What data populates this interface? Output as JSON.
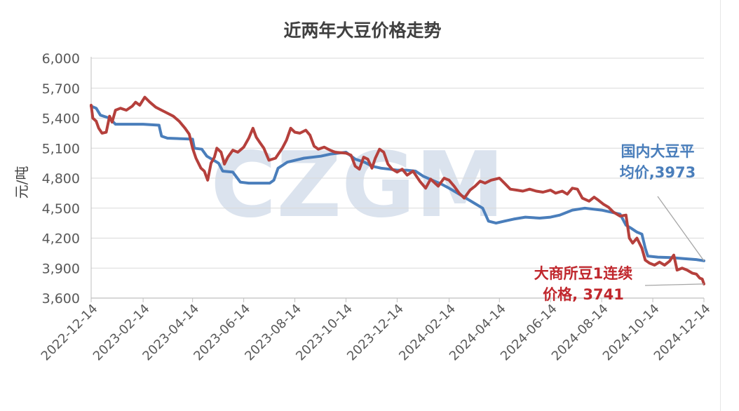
{
  "chart_data": {
    "type": "line",
    "title": "近两年大豆价格走势",
    "ylabel": "元/吨",
    "xlabel": "",
    "ylim": [
      3600,
      6000
    ],
    "xlim": [
      "2022-12-14",
      "2024-12-14"
    ],
    "grid": true,
    "y_ticks": [
      "6,000",
      "5,700",
      "5,400",
      "5,100",
      "4,800",
      "4,500",
      "4,200",
      "3,900",
      "3,600"
    ],
    "x_ticks": [
      "2022-12-14",
      "2023-02-14",
      "2023-04-14",
      "2023-06-14",
      "2023-08-14",
      "2023-10-14",
      "2023-12-14",
      "2024-02-14",
      "2024-04-14",
      "2024-06-14",
      "2024-08-14",
      "2024-10-14",
      "2024-12-14"
    ],
    "watermark": "CZGM",
    "colors": {
      "domestic": "#4a7ebb",
      "dalian": "#b5403c",
      "watermark": "#dbe3ee",
      "grid": "#d9d9d9"
    },
    "series": [
      {
        "name": "国内大豆平均价",
        "color": "#4a7ebb",
        "points": [
          [
            "2022-12-14",
            5520
          ],
          [
            "2022-12-20",
            5500
          ],
          [
            "2022-12-25",
            5430
          ],
          [
            "2023-01-05",
            5400
          ],
          [
            "2023-01-12",
            5340
          ],
          [
            "2023-02-14",
            5340
          ],
          [
            "2023-03-05",
            5330
          ],
          [
            "2023-03-08",
            5220
          ],
          [
            "2023-03-15",
            5200
          ],
          [
            "2023-04-14",
            5190
          ],
          [
            "2023-04-16",
            5100
          ],
          [
            "2023-04-25",
            5090
          ],
          [
            "2023-05-01",
            5020
          ],
          [
            "2023-05-15",
            4950
          ],
          [
            "2023-05-20",
            4870
          ],
          [
            "2023-06-01",
            4860
          ],
          [
            "2023-06-10",
            4760
          ],
          [
            "2023-06-20",
            4750
          ],
          [
            "2023-07-15",
            4750
          ],
          [
            "2023-07-20",
            4780
          ],
          [
            "2023-07-25",
            4900
          ],
          [
            "2023-08-05",
            4960
          ],
          [
            "2023-08-25",
            5000
          ],
          [
            "2023-09-14",
            5020
          ],
          [
            "2023-09-25",
            5040
          ],
          [
            "2023-10-14",
            5060
          ],
          [
            "2023-10-25",
            4990
          ],
          [
            "2023-11-05",
            4960
          ],
          [
            "2023-11-14",
            4920
          ],
          [
            "2023-11-25",
            4900
          ],
          [
            "2023-12-05",
            4890
          ],
          [
            "2023-12-14",
            4880
          ],
          [
            "2023-12-25",
            4880
          ],
          [
            "2024-01-05",
            4870
          ],
          [
            "2024-01-14",
            4820
          ],
          [
            "2024-01-25",
            4780
          ],
          [
            "2024-02-05",
            4740
          ],
          [
            "2024-02-14",
            4700
          ],
          [
            "2024-03-01",
            4620
          ],
          [
            "2024-03-15",
            4550
          ],
          [
            "2024-03-25",
            4500
          ],
          [
            "2024-04-01",
            4370
          ],
          [
            "2024-04-10",
            4350
          ],
          [
            "2024-04-20",
            4370
          ],
          [
            "2024-05-01",
            4390
          ],
          [
            "2024-05-15",
            4410
          ],
          [
            "2024-06-01",
            4400
          ],
          [
            "2024-06-14",
            4410
          ],
          [
            "2024-06-25",
            4430
          ],
          [
            "2024-07-10",
            4480
          ],
          [
            "2024-07-25",
            4500
          ],
          [
            "2024-08-14",
            4480
          ],
          [
            "2024-08-25",
            4460
          ],
          [
            "2024-09-05",
            4440
          ],
          [
            "2024-09-12",
            4330
          ],
          [
            "2024-09-18",
            4300
          ],
          [
            "2024-09-25",
            4260
          ],
          [
            "2024-10-01",
            4240
          ],
          [
            "2024-10-05",
            4100
          ],
          [
            "2024-10-08",
            4020
          ],
          [
            "2024-10-20",
            4010
          ],
          [
            "2024-11-05",
            4005
          ],
          [
            "2024-11-20",
            3995
          ],
          [
            "2024-12-05",
            3985
          ],
          [
            "2024-12-14",
            3973
          ]
        ]
      },
      {
        "name": "大商所豆1连续价格",
        "color": "#b5403c",
        "points": [
          [
            "2022-12-14",
            5530
          ],
          [
            "2022-12-16",
            5400
          ],
          [
            "2022-12-20",
            5370
          ],
          [
            "2022-12-23",
            5300
          ],
          [
            "2022-12-27",
            5250
          ],
          [
            "2023-01-01",
            5260
          ],
          [
            "2023-01-05",
            5420
          ],
          [
            "2023-01-08",
            5360
          ],
          [
            "2023-01-12",
            5480
          ],
          [
            "2023-01-18",
            5500
          ],
          [
            "2023-01-25",
            5480
          ],
          [
            "2023-02-01",
            5520
          ],
          [
            "2023-02-05",
            5560
          ],
          [
            "2023-02-10",
            5530
          ],
          [
            "2023-02-16",
            5610
          ],
          [
            "2023-02-22",
            5560
          ],
          [
            "2023-03-01",
            5510
          ],
          [
            "2023-03-08",
            5480
          ],
          [
            "2023-03-15",
            5450
          ],
          [
            "2023-03-22",
            5420
          ],
          [
            "2023-03-29",
            5370
          ],
          [
            "2023-04-05",
            5300
          ],
          [
            "2023-04-10",
            5240
          ],
          [
            "2023-04-14",
            5100
          ],
          [
            "2023-04-18",
            5000
          ],
          [
            "2023-04-24",
            4900
          ],
          [
            "2023-04-28",
            4870
          ],
          [
            "2023-05-02",
            4780
          ],
          [
            "2023-05-06",
            4950
          ],
          [
            "2023-05-10",
            5010
          ],
          [
            "2023-05-13",
            5100
          ],
          [
            "2023-05-18",
            5060
          ],
          [
            "2023-05-22",
            4940
          ],
          [
            "2023-05-26",
            5010
          ],
          [
            "2023-06-01",
            5080
          ],
          [
            "2023-06-07",
            5060
          ],
          [
            "2023-06-14",
            5110
          ],
          [
            "2023-06-20",
            5200
          ],
          [
            "2023-06-25",
            5300
          ],
          [
            "2023-06-29",
            5210
          ],
          [
            "2023-07-03",
            5160
          ],
          [
            "2023-07-08",
            5100
          ],
          [
            "2023-07-14",
            4980
          ],
          [
            "2023-07-22",
            5000
          ],
          [
            "2023-07-30",
            5100
          ],
          [
            "2023-08-04",
            5180
          ],
          [
            "2023-08-09",
            5300
          ],
          [
            "2023-08-14",
            5260
          ],
          [
            "2023-08-20",
            5250
          ],
          [
            "2023-08-27",
            5280
          ],
          [
            "2023-09-01",
            5230
          ],
          [
            "2023-09-06",
            5120
          ],
          [
            "2023-09-11",
            5090
          ],
          [
            "2023-09-18",
            5110
          ],
          [
            "2023-09-25",
            5080
          ],
          [
            "2023-10-01",
            5060
          ],
          [
            "2023-10-14",
            5050
          ],
          [
            "2023-10-20",
            5030
          ],
          [
            "2023-10-25",
            4920
          ],
          [
            "2023-10-30",
            4890
          ],
          [
            "2023-11-04",
            5010
          ],
          [
            "2023-11-09",
            4990
          ],
          [
            "2023-11-14",
            4900
          ],
          [
            "2023-11-18",
            5000
          ],
          [
            "2023-11-23",
            5090
          ],
          [
            "2023-11-28",
            5060
          ],
          [
            "2023-12-03",
            4940
          ],
          [
            "2023-12-08",
            4890
          ],
          [
            "2023-12-14",
            4860
          ],
          [
            "2023-12-20",
            4890
          ],
          [
            "2023-12-26",
            4830
          ],
          [
            "2024-01-02",
            4870
          ],
          [
            "2024-01-10",
            4770
          ],
          [
            "2024-01-17",
            4700
          ],
          [
            "2024-01-23",
            4790
          ],
          [
            "2024-02-01",
            4720
          ],
          [
            "2024-02-08",
            4800
          ],
          [
            "2024-02-14",
            4780
          ],
          [
            "2024-02-20",
            4720
          ],
          [
            "2024-02-26",
            4650
          ],
          [
            "2024-03-03",
            4600
          ],
          [
            "2024-03-10",
            4680
          ],
          [
            "2024-03-16",
            4720
          ],
          [
            "2024-03-22",
            4770
          ],
          [
            "2024-03-28",
            4750
          ],
          [
            "2024-04-04",
            4780
          ],
          [
            "2024-04-14",
            4800
          ],
          [
            "2024-04-20",
            4750
          ],
          [
            "2024-04-27",
            4690
          ],
          [
            "2024-05-05",
            4680
          ],
          [
            "2024-05-12",
            4670
          ],
          [
            "2024-05-20",
            4690
          ],
          [
            "2024-05-28",
            4670
          ],
          [
            "2024-06-05",
            4660
          ],
          [
            "2024-06-14",
            4680
          ],
          [
            "2024-06-20",
            4650
          ],
          [
            "2024-06-28",
            4670
          ],
          [
            "2024-07-04",
            4640
          ],
          [
            "2024-07-10",
            4700
          ],
          [
            "2024-07-16",
            4690
          ],
          [
            "2024-07-22",
            4600
          ],
          [
            "2024-07-30",
            4570
          ],
          [
            "2024-08-05",
            4610
          ],
          [
            "2024-08-10",
            4580
          ],
          [
            "2024-08-16",
            4540
          ],
          [
            "2024-08-22",
            4510
          ],
          [
            "2024-08-28",
            4460
          ],
          [
            "2024-09-05",
            4420
          ],
          [
            "2024-09-12",
            4430
          ],
          [
            "2024-09-16",
            4200
          ],
          [
            "2024-09-20",
            4150
          ],
          [
            "2024-09-25",
            4200
          ],
          [
            "2024-10-01",
            4100
          ],
          [
            "2024-10-05",
            3980
          ],
          [
            "2024-10-10",
            3950
          ],
          [
            "2024-10-16",
            3930
          ],
          [
            "2024-10-22",
            3960
          ],
          [
            "2024-10-28",
            3930
          ],
          [
            "2024-11-03",
            3970
          ],
          [
            "2024-11-08",
            4030
          ],
          [
            "2024-11-12",
            3880
          ],
          [
            "2024-11-18",
            3900
          ],
          [
            "2024-11-24",
            3880
          ],
          [
            "2024-11-30",
            3850
          ],
          [
            "2024-12-05",
            3840
          ],
          [
            "2024-12-09",
            3800
          ],
          [
            "2024-12-12",
            3790
          ],
          [
            "2024-12-14",
            3741
          ]
        ]
      }
    ],
    "annotations": [
      {
        "series": 0,
        "lines": [
          "国内大豆平",
          "均价,3973"
        ],
        "color": "#4a7ebb"
      },
      {
        "series": 1,
        "lines": [
          "大商所豆1连续",
          "价格, 3741"
        ],
        "color": "#c0272d"
      }
    ]
  }
}
